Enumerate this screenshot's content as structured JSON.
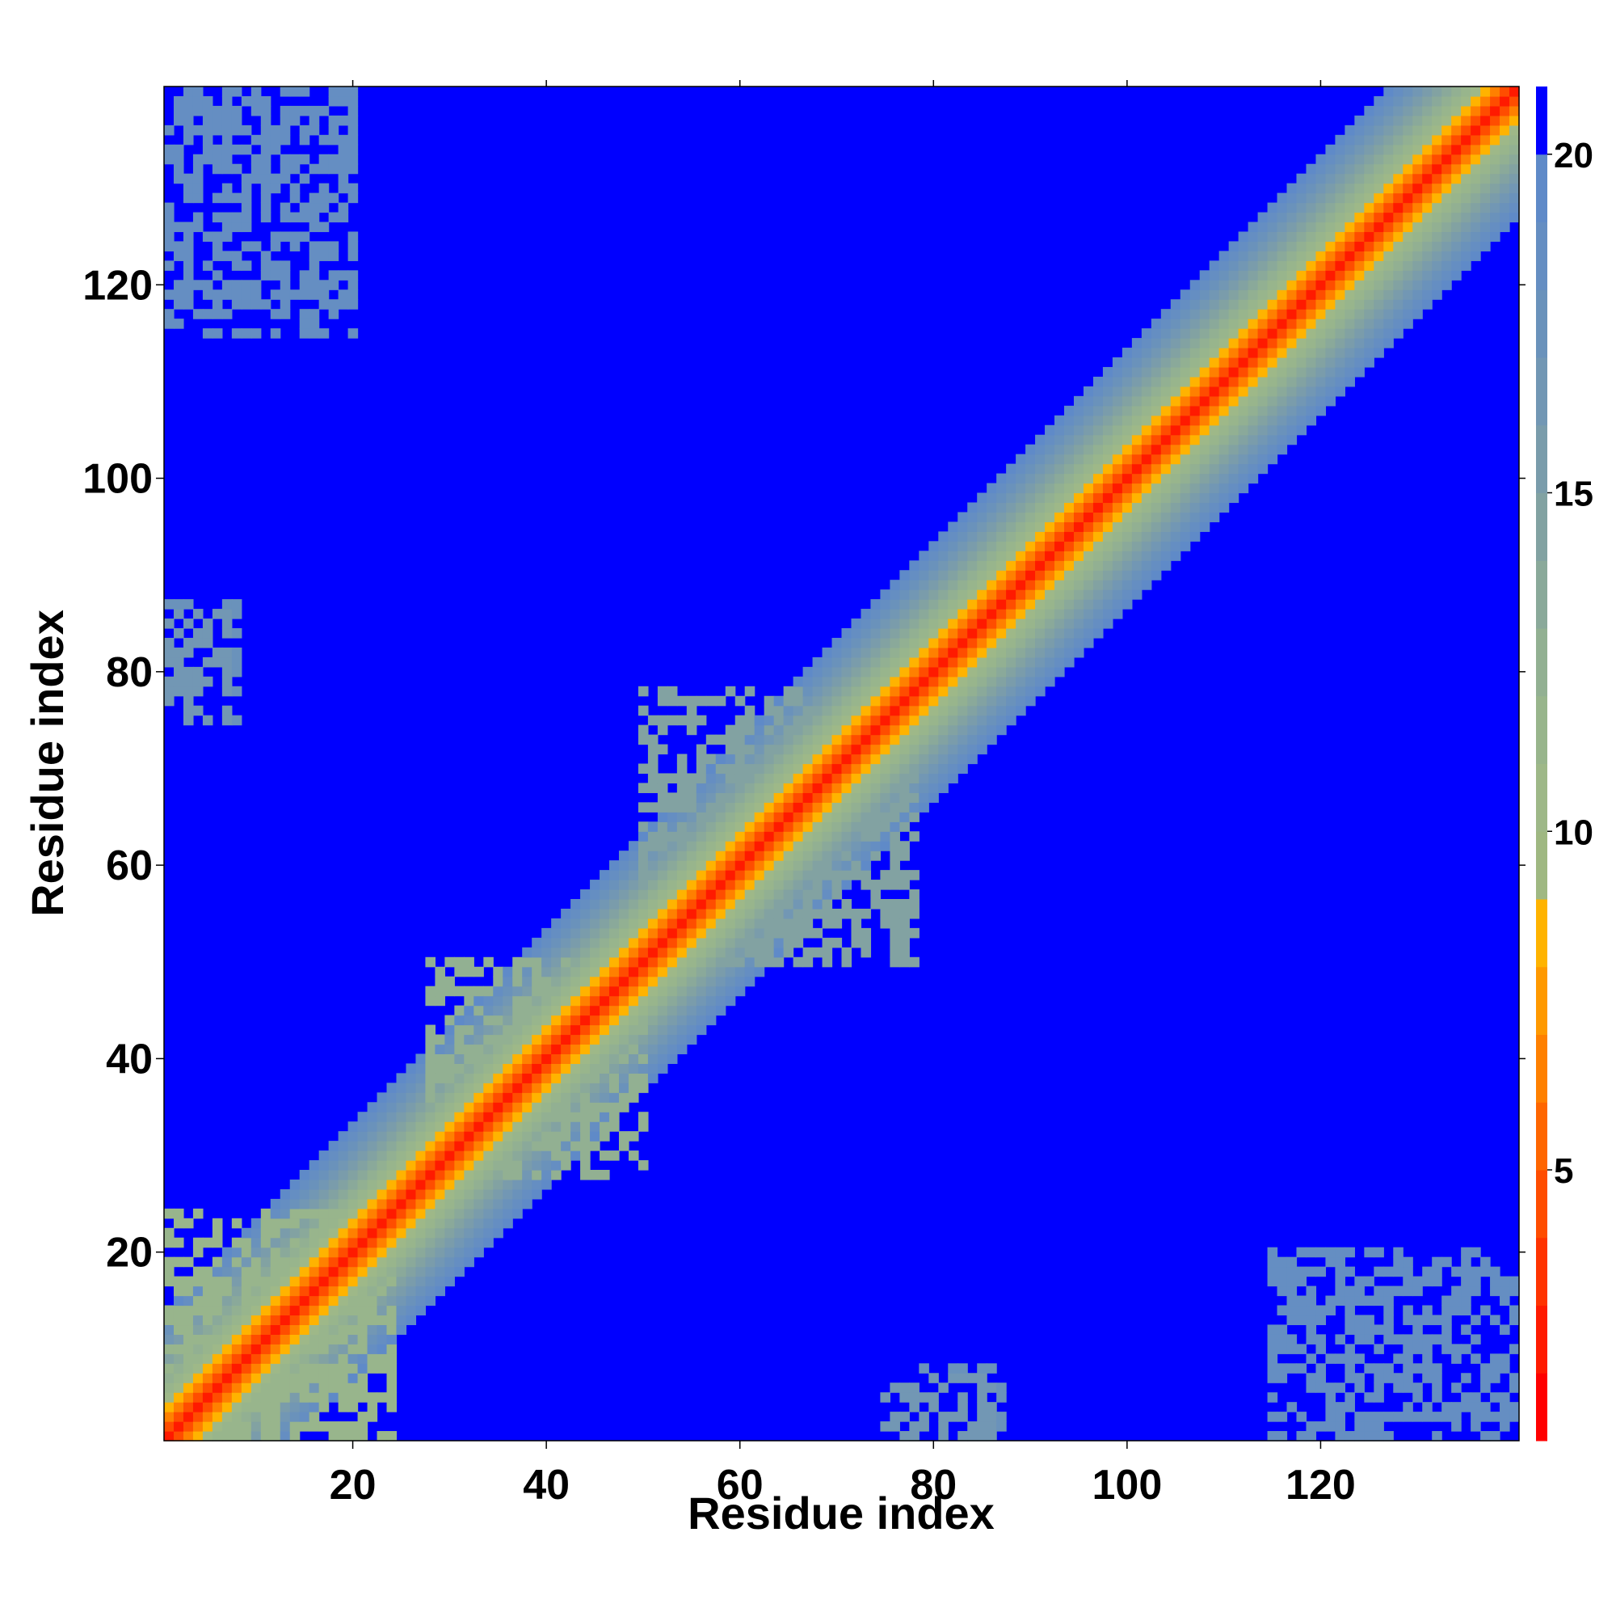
{
  "chart_data": {
    "type": "heatmap",
    "title": "",
    "xlabel": "Residue index",
    "ylabel": "Residue index",
    "n_residues": 140,
    "xlim": [
      1,
      140
    ],
    "ylim": [
      1,
      140
    ],
    "x_ticks": [
      20,
      40,
      60,
      80,
      100,
      120
    ],
    "y_ticks": [
      20,
      40,
      60,
      80,
      100,
      120
    ],
    "colorbar": {
      "ticks": [
        5,
        10,
        15,
        20
      ],
      "range": [
        1,
        21
      ],
      "levels": [
        {
          "from": 1,
          "to": 2,
          "color": "#ff0000"
        },
        {
          "from": 2,
          "to": 3,
          "color": "#ff1a00"
        },
        {
          "from": 3,
          "to": 4,
          "color": "#ff3300"
        },
        {
          "from": 4,
          "to": 5,
          "color": "#ff4d00"
        },
        {
          "from": 5,
          "to": 6,
          "color": "#ff6600"
        },
        {
          "from": 6,
          "to": 7,
          "color": "#ff8000"
        },
        {
          "from": 7,
          "to": 8,
          "color": "#ff9900"
        },
        {
          "from": 8,
          "to": 9,
          "color": "#ffb300"
        },
        {
          "from": 9,
          "to": 10,
          "color": "#9fb882"
        },
        {
          "from": 10,
          "to": 11,
          "color": "#9eb888"
        },
        {
          "from": 11,
          "to": 12,
          "color": "#98b58c"
        },
        {
          "from": 12,
          "to": 13,
          "color": "#92b092"
        },
        {
          "from": 13,
          "to": 14,
          "color": "#8aa99a"
        },
        {
          "from": 14,
          "to": 15,
          "color": "#82a2a2"
        },
        {
          "from": 15,
          "to": 16,
          "color": "#7a9cab"
        },
        {
          "from": 16,
          "to": 17,
          "color": "#7297b4"
        },
        {
          "from": 17,
          "to": 18,
          "color": "#6a92bb"
        },
        {
          "from": 18,
          "to": 19,
          "color": "#658ec2"
        },
        {
          "from": 19,
          "to": 20,
          "color": "#5f8ac8"
        },
        {
          "from": 20,
          "to": 21,
          "color": "#0000ff"
        }
      ]
    },
    "diagonal_band": {
      "description_values": "distance rises from ~2 on the diagonal to >20 far off it",
      "levels_by_offset": [
        2,
        4,
        6,
        8,
        10,
        11,
        12,
        13,
        14,
        15,
        16,
        17,
        18,
        19
      ]
    },
    "contact_regions": [
      {
        "x": [
          1,
          20
        ],
        "y": [
          115,
          140
        ],
        "value": 18
      },
      {
        "x": [
          1,
          8
        ],
        "y": [
          75,
          87
        ],
        "value": 17
      },
      {
        "x": [
          52,
          78
        ],
        "y": [
          50,
          78
        ],
        "value": 14
      },
      {
        "x": [
          36,
          50
        ],
        "y": [
          28,
          44
        ],
        "value": 12
      },
      {
        "x": [
          75,
          86
        ],
        "y": [
          1,
          7
        ],
        "value": 16
      },
      {
        "x": [
          118,
          140
        ],
        "y": [
          1,
          20
        ],
        "value": 18
      },
      {
        "x": [
          1,
          24
        ],
        "y": [
          1,
          24
        ],
        "value": 11
      }
    ],
    "grid": false,
    "legend": "none"
  }
}
